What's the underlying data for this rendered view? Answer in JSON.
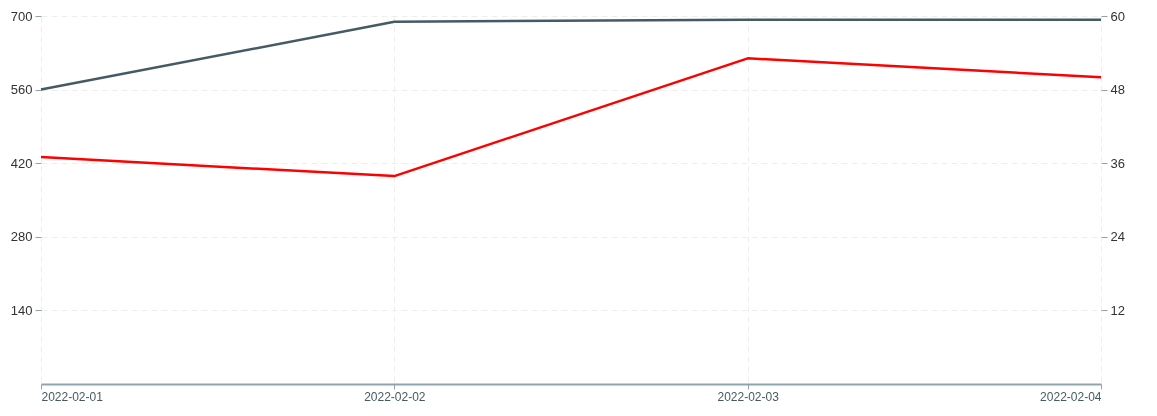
{
  "chart_data": {
    "type": "line",
    "x": [
      "2022-02-01",
      "2022-02-02",
      "2022-02-03",
      "2022-02-04"
    ],
    "series": [
      {
        "color": "#455a64",
        "values": [
          560,
          689,
          693,
          693
        ]
      },
      {
        "color": "#ff0000",
        "values": [
          37,
          33.9,
          53.1,
          50
        ],
        "axis": "y2"
      }
    ],
    "xlim": [
      "2022-02-01",
      "2022-02-04"
    ],
    "xticks": [
      "2022-02-01",
      "2022-02-02",
      "2022-02-03",
      "2022-02-04"
    ],
    "ylim": [
      0,
      700
    ],
    "yticks": [
      140,
      280,
      420,
      560,
      700
    ],
    "y2lim": [
      0,
      60
    ],
    "y2ticks": [
      12,
      24,
      36,
      48,
      60
    ],
    "grid": true,
    "marker": "none",
    "line_style": "solid"
  }
}
